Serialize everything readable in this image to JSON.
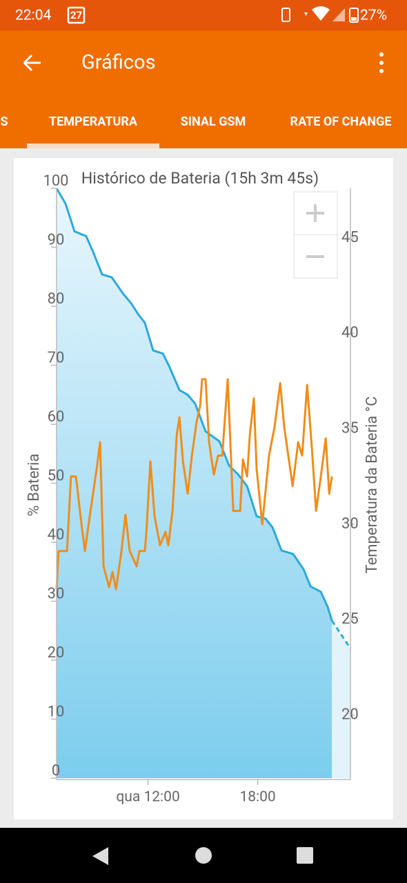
{
  "status_bar": {
    "time": "22:04",
    "calendar_day": "27",
    "battery": "27%"
  },
  "app_bar": {
    "title": "Gráficos"
  },
  "tabs": [
    "S",
    "TEMPERATURA",
    "SINAL GSM",
    "RATE OF CHANGE"
  ],
  "selected_tab": 1,
  "chart_data": {
    "type": "line",
    "title": "Histórico de Bateria (15h 3m 45s)",
    "y_label": "% Bateria",
    "y2_label": "Temperatura da Bateria °C",
    "xlim": [
      7.0,
      23.07
    ],
    "xticks": [
      {
        "value": 12,
        "label": "qua 12:00"
      },
      {
        "value": 18,
        "label": "18:00"
      }
    ],
    "ylim": [
      0,
      100
    ],
    "yticks": [
      0,
      10,
      20,
      30,
      40,
      50,
      60,
      70,
      80,
      90,
      100
    ],
    "y2lim": [
      16.7,
      47.6
    ],
    "y2ticks": [
      20,
      25,
      30,
      35,
      40,
      45
    ],
    "grid": false,
    "series": [
      {
        "color": "#2aa9da",
        "area": true,
        "axis": "y",
        "x": [
          7.0,
          7.49,
          7.98,
          8.62,
          9.0,
          9.49,
          10.02,
          10.62,
          11.08,
          11.45,
          11.83,
          12.28,
          12.81,
          13.15,
          13.72,
          14.17,
          14.58,
          15.15,
          15.91,
          16.43,
          16.92,
          17.42,
          17.94,
          18.43,
          18.81,
          19.3,
          19.94,
          20.51,
          20.89,
          21.45,
          21.83,
          22.06
        ],
        "values": [
          100,
          97.4,
          92.7,
          91.9,
          89.2,
          85.4,
          84.9,
          82.2,
          80.5,
          78.7,
          77.2,
          72.5,
          72.0,
          69.9,
          65.8,
          65.0,
          63.5,
          58.8,
          57.1,
          53.0,
          51.5,
          49.5,
          44.4,
          44.0,
          42.5,
          38.6,
          38.0,
          35.4,
          32.5,
          31.6,
          29.0,
          26.7
        ]
      },
      {
        "color": "#2aa9da",
        "area": true,
        "dashed": true,
        "axis": "y",
        "x": [
          22.06,
          23.07
        ],
        "values": [
          26.7,
          22.0
        ]
      },
      {
        "color": "#f08c1a",
        "axis": "y2",
        "x": [
          7.0,
          7.11,
          7.57,
          7.79,
          8.06,
          8.36,
          8.55,
          8.81,
          9.19,
          9.38,
          9.57,
          9.87,
          10.06,
          10.25,
          10.55,
          10.77,
          11.0,
          11.38,
          11.53,
          11.83,
          11.91,
          12.13,
          12.36,
          12.66,
          12.96,
          13.11,
          13.34,
          13.57,
          13.72,
          13.91,
          14.17,
          14.4,
          14.66,
          14.85,
          14.96,
          15.15,
          15.34,
          15.6,
          15.83,
          16.06,
          16.36,
          16.66,
          17.04,
          17.19,
          17.42,
          17.57,
          17.79,
          17.94,
          18.25,
          18.62,
          18.92,
          19.23,
          19.45,
          19.91,
          20.21,
          20.43,
          20.7,
          20.96,
          21.19,
          21.45,
          21.72,
          21.91,
          22.06
        ],
        "values": [
          26.6,
          28.6,
          28.6,
          32.5,
          32.5,
          30.0,
          28.6,
          30.4,
          32.9,
          34.3,
          27.8,
          26.7,
          27.5,
          26.6,
          28.6,
          30.5,
          28.6,
          27.8,
          28.6,
          28.6,
          29.6,
          33.3,
          30.4,
          28.9,
          29.6,
          28.9,
          30.7,
          34.7,
          35.6,
          33.3,
          31.6,
          33.6,
          35.4,
          36.2,
          37.6,
          37.6,
          34.3,
          32.6,
          33.6,
          33.6,
          37.6,
          30.7,
          30.7,
          33.4,
          32.5,
          34.7,
          36.6,
          32.9,
          30.0,
          33.6,
          35.1,
          37.4,
          35.1,
          32.0,
          34.3,
          33.6,
          37.3,
          34.0,
          30.7,
          32.5,
          34.5,
          31.6,
          32.5
        ]
      }
    ]
  }
}
